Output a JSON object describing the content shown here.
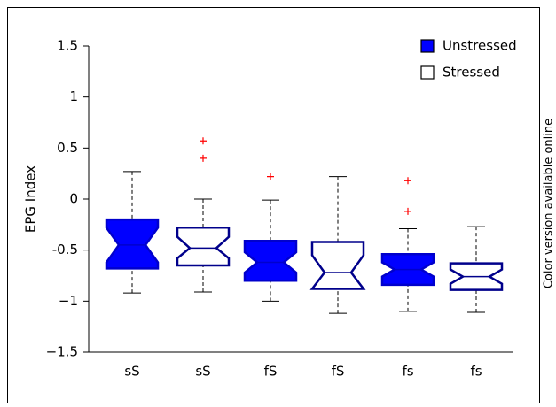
{
  "chart_data": {
    "type": "box",
    "side_note": "Color version available online",
    "ylabel": "EPG Index",
    "categories": [
      "sS",
      "sS",
      "fS",
      "fS",
      "fs",
      "fs"
    ],
    "ylim": [
      -1.5,
      1.5
    ],
    "yticks": [
      {
        "value": -1.5,
        "label": "−1.5"
      },
      {
        "value": -1,
        "label": "−1"
      },
      {
        "value": -0.5,
        "label": "-0.5"
      },
      0,
      0.5,
      1,
      1.5
    ],
    "legend": "upper right",
    "outlier_color": "#ff0000",
    "series": [
      {
        "name": "Unstressed",
        "color": "#0000cc",
        "fill": "#0000ff"
      },
      {
        "name": "Stressed",
        "color": "#00008b",
        "fill": "#ffffff"
      }
    ],
    "boxes": [
      {
        "series": 0,
        "whisker_low": -0.92,
        "q1": -0.68,
        "notch_low": -0.62,
        "median": -0.45,
        "notch_high": -0.28,
        "q3": -0.2,
        "whisker_high": 0.27,
        "outliers": []
      },
      {
        "series": 1,
        "whisker_low": -0.91,
        "q1": -0.65,
        "notch_low": -0.58,
        "median": -0.48,
        "notch_high": -0.37,
        "q3": -0.28,
        "whisker_high": 0,
        "outliers": [
          0.57,
          0.4
        ]
      },
      {
        "series": 0,
        "whisker_low": -1.0,
        "q1": -0.8,
        "notch_low": -0.72,
        "median": -0.62,
        "notch_high": -0.52,
        "q3": -0.41,
        "whisker_high": -0.01,
        "outliers": [
          0.22
        ]
      },
      {
        "series": 1,
        "whisker_low": -1.12,
        "q1": -0.88,
        "notch_low": -0.88,
        "median": -0.72,
        "notch_high": -0.55,
        "q3": -0.42,
        "whisker_high": 0.22,
        "outliers": []
      },
      {
        "series": 0,
        "whisker_low": -1.1,
        "q1": -0.84,
        "notch_low": -0.76,
        "median": -0.69,
        "notch_high": -0.62,
        "q3": -0.54,
        "whisker_high": -0.29,
        "outliers": [
          0.18,
          -0.12
        ]
      },
      {
        "series": 1,
        "whisker_low": -1.11,
        "q1": -0.89,
        "notch_low": -0.83,
        "median": -0.76,
        "notch_high": -0.69,
        "q3": -0.63,
        "whisker_high": -0.27,
        "outliers": []
      }
    ]
  }
}
